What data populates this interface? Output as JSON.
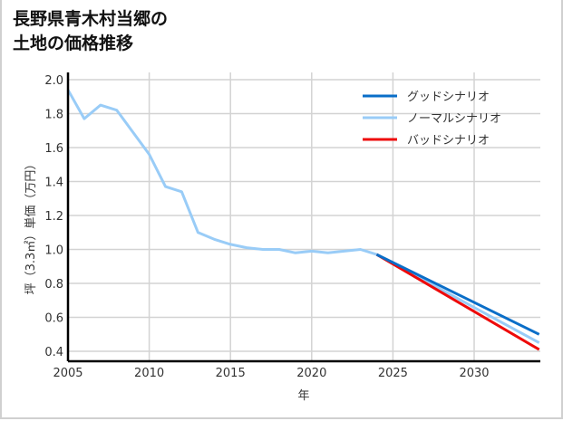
{
  "title_lines": [
    "長野県青木村当郷の",
    "土地の価格推移"
  ],
  "chart_data": {
    "type": "line",
    "title": "長野県青木村当郷の土地の価格推移",
    "xlabel": "年",
    "ylabel": "坪（3.3㎡）単価（万円）",
    "xlim": [
      2005,
      2034
    ],
    "ylim": [
      0.35,
      2.0
    ],
    "xticks": [
      2005,
      2010,
      2015,
      2020,
      2025,
      2030
    ],
    "yticks": [
      0.4,
      0.6,
      0.8,
      1.0,
      1.2,
      1.4,
      1.6,
      1.8,
      2.0
    ],
    "grid": true,
    "legend_position": "upper right",
    "series": [
      {
        "name": "グッドシナリオ",
        "color": "#0a6ec8",
        "x": [
          2024,
          2034
        ],
        "values": [
          0.97,
          0.5
        ]
      },
      {
        "name": "ノーマルシナリオ",
        "color": "#99ccf7",
        "x": [
          2005,
          2006,
          2007,
          2008,
          2009,
          2010,
          2011,
          2012,
          2013,
          2014,
          2015,
          2016,
          2017,
          2018,
          2019,
          2020,
          2021,
          2022,
          2023,
          2024,
          2034
        ],
        "values": [
          1.94,
          1.77,
          1.85,
          1.82,
          1.69,
          1.56,
          1.37,
          1.34,
          1.1,
          1.06,
          1.03,
          1.01,
          1.0,
          1.0,
          0.98,
          0.99,
          0.98,
          0.99,
          1.0,
          0.97,
          0.45
        ]
      },
      {
        "name": "バッドシナリオ",
        "color": "#ee0a0a",
        "x": [
          2024,
          2034
        ],
        "values": [
          0.97,
          0.41
        ]
      }
    ]
  }
}
